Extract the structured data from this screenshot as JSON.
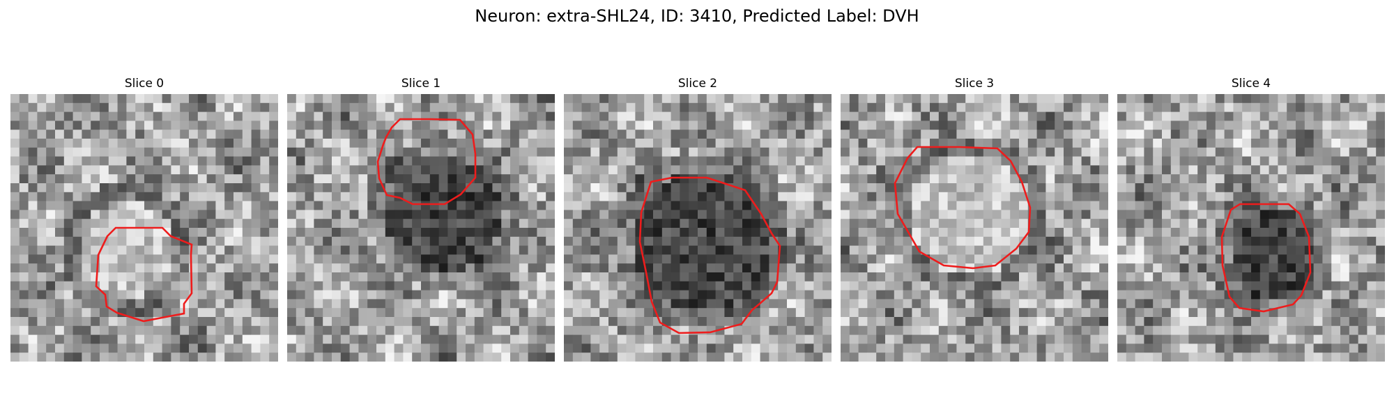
{
  "figure": {
    "title": "Neuron: extra-SHL24, ID: 3410, Predicted Label: DVH"
  },
  "contour_color": "#ee1c1c",
  "panels": [
    {
      "title": "Slice 0",
      "darkspot": false
    },
    {
      "title": "Slice 1",
      "darkspot": true
    },
    {
      "title": "Slice 2",
      "darkspot": true
    },
    {
      "title": "Slice 3",
      "darkspot": false
    },
    {
      "title": "Slice 4",
      "darkspot": true
    }
  ]
}
